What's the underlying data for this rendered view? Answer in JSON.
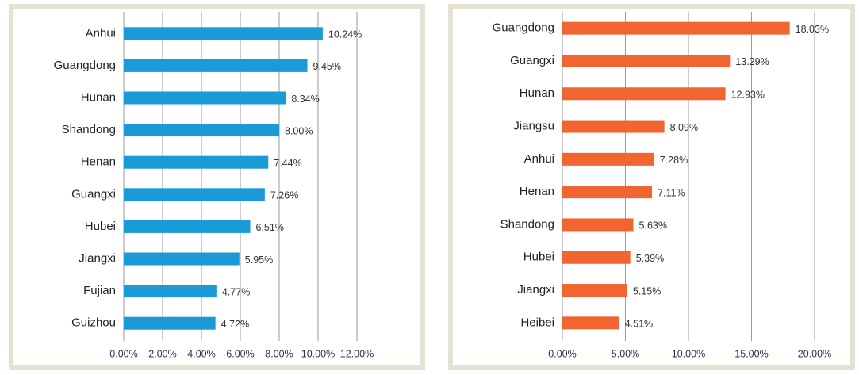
{
  "chart_data": [
    {
      "type": "bar",
      "orientation": "horizontal",
      "categories": [
        "Anhui",
        "Guangdong",
        "Hunan",
        "Shandong",
        "Henan",
        "Guangxi",
        "Hubei",
        "Jiangxi",
        "Fujian",
        "Guizhou"
      ],
      "values": [
        10.24,
        9.45,
        8.34,
        8.0,
        7.44,
        7.26,
        6.51,
        5.95,
        4.77,
        4.72
      ],
      "value_labels": [
        "10.24%",
        "9.45%",
        "8.34%",
        "8.00%",
        "7.44%",
        "7.26%",
        "6.51%",
        "5.95%",
        "4.77%",
        "4.72%"
      ],
      "color": "#1a9ad6",
      "xlim": [
        0,
        12
      ],
      "xticks": [
        {
          "value": 0,
          "label": "0.00%"
        },
        {
          "value": 2,
          "label": "2.00%"
        },
        {
          "value": 4,
          "label": "4.00%"
        },
        {
          "value": 6,
          "label": "6.00%"
        },
        {
          "value": 8,
          "label": "8.00%"
        },
        {
          "value": 10,
          "label": "10.00%"
        },
        {
          "value": 12,
          "label": "12.00%"
        }
      ],
      "grid": true
    },
    {
      "type": "bar",
      "orientation": "horizontal",
      "categories": [
        "Guangdong",
        "Guangxi",
        "Hunan",
        "Jiangsu",
        "Anhui",
        "Henan",
        "Shandong",
        "Hubei",
        "Jiangxi",
        "Heibei"
      ],
      "values": [
        18.03,
        13.29,
        12.93,
        8.09,
        7.28,
        7.11,
        5.63,
        5.39,
        5.15,
        4.51
      ],
      "value_labels": [
        "18.03%",
        "13.29%",
        "12.93%",
        "8.09%",
        "7.28%",
        "7.11%",
        "5.63%",
        "5.39%",
        "5.15%",
        "4.51%"
      ],
      "color": "#f26531",
      "xlim": [
        0,
        20
      ],
      "xticks": [
        {
          "value": 0,
          "label": "0.00%"
        },
        {
          "value": 5,
          "label": "5.00%"
        },
        {
          "value": 10,
          "label": "10.00%"
        },
        {
          "value": 15,
          "label": "15.00%"
        },
        {
          "value": 20,
          "label": "20.00%"
        }
      ],
      "grid": true
    }
  ]
}
